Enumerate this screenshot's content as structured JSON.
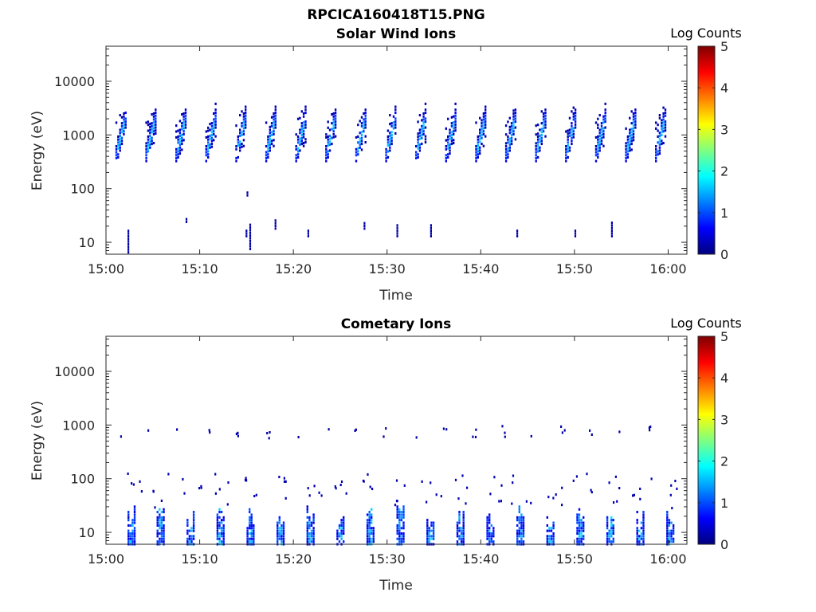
{
  "figure": {
    "title": "RPCICA160418T15.PNG"
  },
  "colors": {
    "axis": "#262626",
    "colormap": [
      "#00007f",
      "#0000ff",
      "#007fff",
      "#00ffff",
      "#7fff7f",
      "#ffff00",
      "#ff7f00",
      "#ff0000",
      "#7f0000"
    ]
  },
  "chart_data": [
    {
      "type": "heatmap",
      "title": "Solar Wind Ions",
      "xlabel": "Time",
      "ylabel": "Energy (eV)",
      "y_scale": "log",
      "x_range": [
        "15:00",
        "16:02"
      ],
      "ylim": [
        6,
        45000
      ],
      "x_ticks": [
        "15:00",
        "15:10",
        "15:20",
        "15:30",
        "15:40",
        "15:50",
        "16:00"
      ],
      "y_ticks": [
        10,
        100,
        1000,
        10000
      ],
      "y_tick_labels": [
        "10",
        "100",
        "1000",
        "10000"
      ],
      "colorbar": {
        "label": "Log Counts",
        "range": [
          0,
          5
        ],
        "ticks": [
          "0",
          "1",
          "2",
          "3",
          "4",
          "5"
        ]
      },
      "grid": false,
      "bursts_minutes": [
        1.0,
        4.2,
        7.4,
        10.6,
        13.8,
        17.0,
        20.2,
        23.4,
        26.6,
        29.8,
        33.0,
        36.2,
        39.4,
        42.6,
        45.8,
        49.0,
        52.2,
        55.4,
        58.6
      ],
      "burst_energy_eV": [
        450,
        2500
      ],
      "burst_peak_log_counts": 1.7,
      "sporadic_low_energy": [
        {
          "t": 2.3,
          "e_lo": 6.5,
          "e_hi": 17
        },
        {
          "t": 8.5,
          "e_lo": 24,
          "e_hi": 28
        },
        {
          "t": 14.9,
          "e_lo": 13,
          "e_hi": 18
        },
        {
          "t": 15.3,
          "e_lo": 7.5,
          "e_hi": 23
        },
        {
          "t": 18.0,
          "e_lo": 18,
          "e_hi": 27
        },
        {
          "t": 21.5,
          "e_lo": 13,
          "e_hi": 18
        },
        {
          "t": 27.5,
          "e_lo": 18,
          "e_hi": 23
        },
        {
          "t": 31.0,
          "e_lo": 13,
          "e_hi": 23
        },
        {
          "t": 34.6,
          "e_lo": 13,
          "e_hi": 23
        },
        {
          "t": 43.8,
          "e_lo": 13,
          "e_hi": 18
        },
        {
          "t": 50.0,
          "e_lo": 13,
          "e_hi": 18
        },
        {
          "t": 53.9,
          "e_lo": 13,
          "e_hi": 24
        },
        {
          "t": 15.0,
          "e_lo": 75,
          "e_hi": 90
        }
      ]
    },
    {
      "type": "heatmap",
      "title": "Cometary Ions",
      "xlabel": "Time",
      "ylabel": "Energy (eV)",
      "y_scale": "log",
      "x_range": [
        "15:00",
        "16:02"
      ],
      "ylim": [
        6,
        45000
      ],
      "x_ticks": [
        "15:00",
        "15:10",
        "15:20",
        "15:30",
        "15:40",
        "15:50",
        "16:00"
      ],
      "y_ticks": [
        10,
        100,
        1000,
        10000
      ],
      "y_tick_labels": [
        "10",
        "100",
        "1000",
        "10000"
      ],
      "colorbar": {
        "label": "Log Counts",
        "range": [
          0,
          5
        ],
        "ticks": [
          "0",
          "1",
          "2",
          "3",
          "4",
          "5"
        ]
      },
      "grid": false,
      "low_energy_columns_minutes": [
        2.3,
        5.4,
        8.6,
        11.8,
        15.0,
        18.2,
        21.4,
        24.6,
        27.8,
        31.0,
        34.2,
        37.4,
        40.6,
        43.8,
        47.0,
        50.2,
        53.4,
        56.6,
        59.8
      ],
      "low_energy_range_eV": [
        6,
        40
      ],
      "peak_log_counts": 1.8,
      "sporadic_1000eV_minutes": [
        1.2,
        4.3,
        7.4,
        10.6,
        13.7,
        16.9,
        20.0,
        23.2,
        26.3,
        29.5,
        32.6,
        35.8,
        38.9,
        42.1,
        45.2,
        48.4,
        51.5,
        54.7,
        57.8
      ]
    }
  ]
}
